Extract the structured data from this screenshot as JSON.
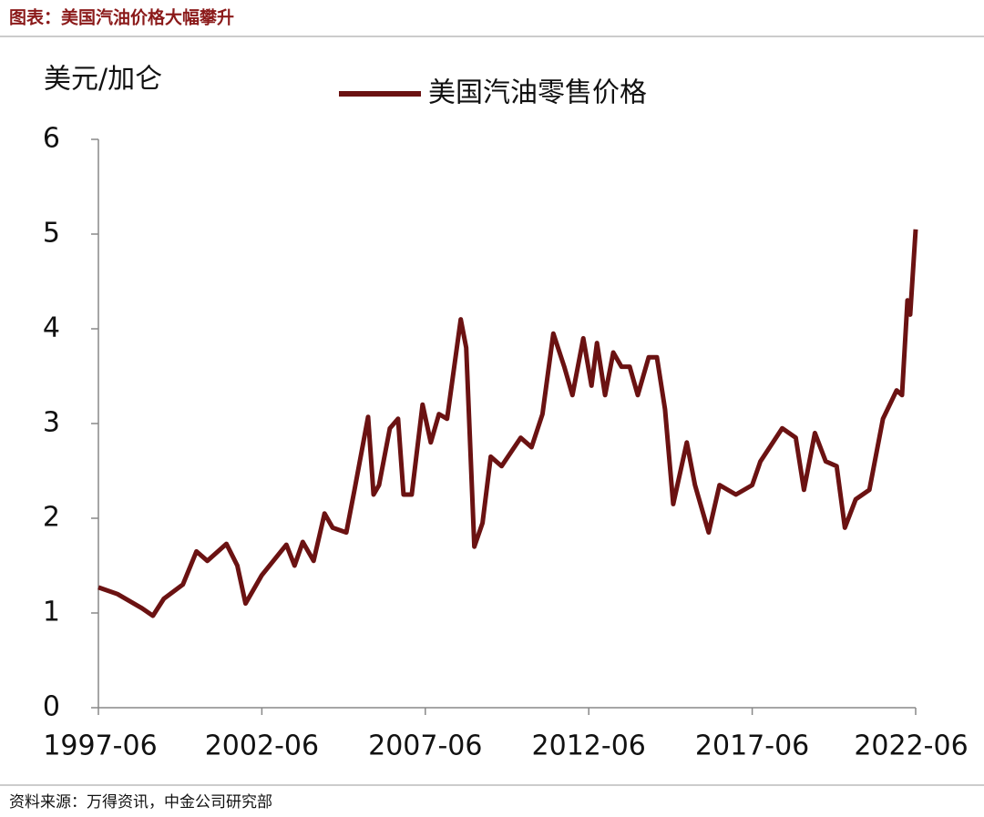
{
  "header": {
    "title": "图表：美国汽油价格大幅攀升"
  },
  "chart_data": {
    "type": "line",
    "y_label": "美元/加仑",
    "x": [
      "1997-06",
      "1998-01",
      "1998-10",
      "1999-02",
      "1999-06",
      "2000-01",
      "2000-06",
      "2000-10",
      "2001-05",
      "2001-09",
      "2001-12",
      "2002-06",
      "2003-03",
      "2003-06",
      "2003-09",
      "2004-01",
      "2004-05",
      "2004-08",
      "2005-01",
      "2005-04",
      "2005-09",
      "2005-11",
      "2006-01",
      "2006-05",
      "2006-08",
      "2006-10",
      "2007-01",
      "2007-05",
      "2007-08",
      "2007-11",
      "2008-02",
      "2008-07",
      "2008-09",
      "2008-12",
      "2009-03",
      "2009-06",
      "2009-10",
      "2010-05",
      "2010-09",
      "2011-01",
      "2011-05",
      "2011-09",
      "2011-12",
      "2012-04",
      "2012-07",
      "2012-09",
      "2012-12",
      "2013-03",
      "2013-06",
      "2013-09",
      "2013-12",
      "2014-04",
      "2014-07",
      "2014-10",
      "2015-01",
      "2015-06",
      "2015-09",
      "2016-02",
      "2016-06",
      "2016-12",
      "2017-06",
      "2017-09",
      "2018-05",
      "2018-10",
      "2019-01",
      "2019-05",
      "2019-09",
      "2020-01",
      "2020-04",
      "2020-08",
      "2021-01",
      "2021-06",
      "2021-11",
      "2022-01",
      "2022-03",
      "2022-04",
      "2022-06"
    ],
    "series": [
      {
        "name": "美国汽油零售价格",
        "color": "#6b1212",
        "values": [
          1.27,
          1.2,
          1.05,
          0.97,
          1.15,
          1.3,
          1.65,
          1.55,
          1.73,
          1.5,
          1.1,
          1.4,
          1.72,
          1.5,
          1.75,
          1.55,
          2.05,
          1.9,
          1.85,
          2.3,
          3.07,
          2.25,
          2.35,
          2.95,
          3.05,
          2.25,
          2.25,
          3.2,
          2.8,
          3.1,
          3.05,
          4.1,
          3.8,
          1.7,
          1.95,
          2.65,
          2.55,
          2.85,
          2.75,
          3.1,
          3.95,
          3.6,
          3.3,
          3.9,
          3.4,
          3.85,
          3.3,
          3.75,
          3.6,
          3.6,
          3.3,
          3.7,
          3.7,
          3.15,
          2.15,
          2.8,
          2.35,
          1.85,
          2.35,
          2.25,
          2.35,
          2.6,
          2.95,
          2.85,
          2.3,
          2.9,
          2.6,
          2.55,
          1.9,
          2.2,
          2.3,
          3.05,
          3.35,
          3.3,
          4.3,
          4.15,
          5.05
        ]
      }
    ],
    "xlim": [
      "1997-06",
      "2022-06"
    ],
    "xticks": [
      "1997-06",
      "2002-06",
      "2007-06",
      "2012-06",
      "2017-06",
      "2022-06"
    ],
    "ylim": [
      0,
      6
    ],
    "yticks": [
      0,
      1,
      2,
      3,
      4,
      5,
      6
    ],
    "grid": false
  },
  "footer": {
    "source": "资料来源：万得资讯，中金公司研究部"
  }
}
